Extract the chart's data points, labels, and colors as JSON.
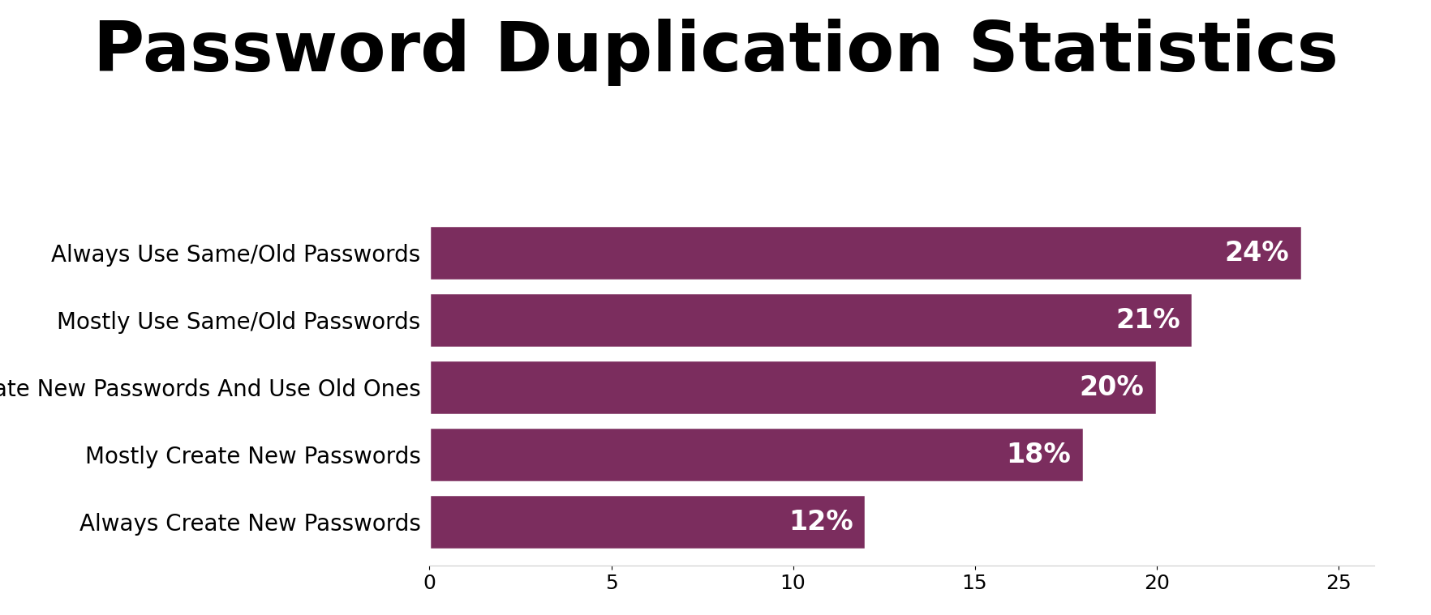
{
  "title": "Password Duplication Statistics",
  "categories": [
    "Always Use Same/Old Passwords",
    "Mostly Use Same/Old Passwords",
    "Equally Create New Passwords And Use Old Ones",
    "Mostly Create New Passwords",
    "Always Create New Passwords"
  ],
  "values": [
    24,
    21,
    20,
    18,
    12
  ],
  "labels": [
    "24%",
    "21%",
    "20%",
    "18%",
    "12%"
  ],
  "bar_color": "#7B2D5E",
  "background_color": "#ffffff",
  "title_fontsize": 62,
  "label_fontsize": 20,
  "bar_label_fontsize": 24,
  "tick_fontsize": 18,
  "xlim": [
    0,
    26
  ],
  "xticks": [
    0,
    5,
    10,
    15,
    20,
    25
  ],
  "bar_height": 0.82,
  "bar_gap": 0.18
}
